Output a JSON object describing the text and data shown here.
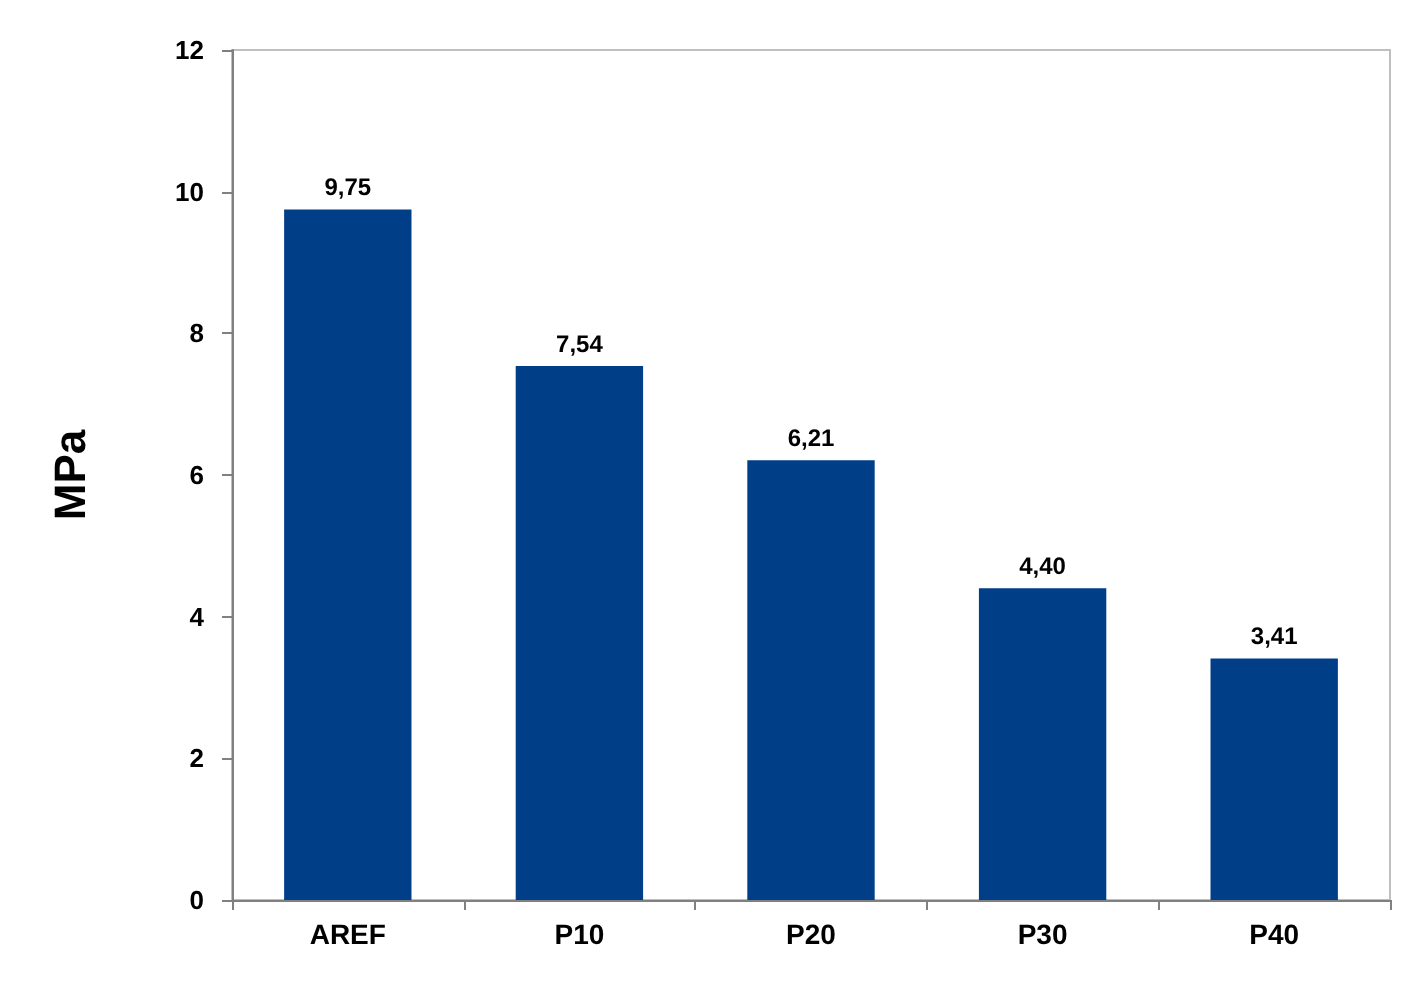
{
  "chart_data": {
    "type": "bar",
    "ylabel": "MPa",
    "categories": [
      "AREF",
      "P10",
      "P20",
      "P30",
      "P40"
    ],
    "values": [
      9.75,
      7.54,
      6.21,
      4.4,
      3.41
    ],
    "value_labels": [
      "9,75",
      "7,54",
      "6,21",
      "4,40",
      "3,41"
    ],
    "color": "#003f87",
    "ylim": [
      0,
      12
    ],
    "yticks": [
      0,
      2,
      4,
      6,
      8,
      10,
      12
    ],
    "grid": false
  }
}
